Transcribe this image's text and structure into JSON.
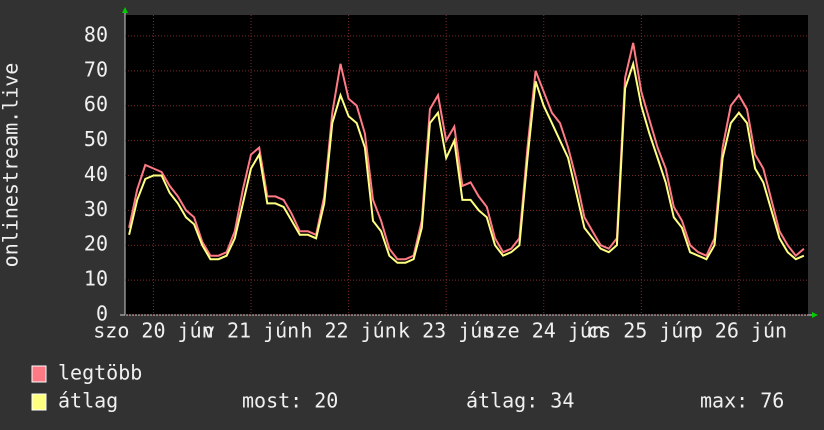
{
  "chart_data": {
    "type": "line",
    "y_axis_label": "onlinestream.live",
    "categories": [
      null,
      null,
      null,
      "szo 20 jún",
      null,
      null,
      null,
      null,
      null,
      null,
      null,
      null,
      null,
      null,
      null,
      "v 21 jún",
      null,
      null,
      null,
      null,
      null,
      null,
      null,
      null,
      null,
      null,
      null,
      "h 22 jún",
      null,
      null,
      null,
      null,
      null,
      null,
      null,
      null,
      null,
      null,
      null,
      "k 23 jún",
      null,
      null,
      null,
      null,
      null,
      null,
      null,
      null,
      null,
      null,
      null,
      "sze 24 jún",
      null,
      null,
      null,
      null,
      null,
      null,
      null,
      null,
      null,
      null,
      null,
      "cs 25 jún",
      null,
      null,
      null,
      null,
      null,
      null,
      null,
      null,
      null,
      null,
      null,
      "p 26 jún",
      null,
      null,
      null,
      null,
      null,
      null,
      null,
      null
    ],
    "series": [
      {
        "name": "legtöbb",
        "color": "#ff7a85",
        "values": [
          25,
          36,
          43,
          42,
          41,
          37,
          34,
          30,
          28,
          21,
          17,
          17,
          18,
          24,
          36,
          46,
          48,
          34,
          34,
          33,
          29,
          24,
          24,
          23,
          34,
          58,
          72,
          62,
          60,
          52,
          33,
          27,
          19,
          16,
          16,
          17,
          27,
          59,
          63,
          50,
          54,
          37,
          38,
          34,
          31,
          22,
          18,
          19,
          22,
          48,
          70,
          64,
          58,
          55,
          48,
          39,
          28,
          24,
          20,
          19,
          22,
          68,
          78,
          64,
          56,
          48,
          42,
          31,
          27,
          20,
          18,
          17,
          22,
          48,
          60,
          63,
          59,
          46,
          42,
          33,
          24,
          20,
          17,
          19
        ]
      },
      {
        "name": "átlag",
        "color": "#ffff80",
        "values": [
          23,
          33,
          39,
          40,
          40,
          35,
          32,
          28,
          26,
          20,
          16,
          16,
          17,
          22,
          32,
          42,
          46,
          32,
          32,
          31,
          27,
          23,
          23,
          22,
          32,
          55,
          63,
          57,
          55,
          48,
          27,
          24,
          17,
          15,
          15,
          16,
          25,
          55,
          58,
          45,
          50,
          33,
          33,
          30,
          28,
          20,
          17,
          18,
          20,
          45,
          67,
          60,
          55,
          50,
          45,
          35,
          25,
          22,
          19,
          18,
          20,
          65,
          72,
          60,
          52,
          45,
          38,
          28,
          25,
          18,
          17,
          16,
          20,
          45,
          55,
          58,
          55,
          42,
          38,
          30,
          22,
          18,
          16,
          17
        ]
      }
    ],
    "ylim": [
      0,
      86
    ],
    "yticks": [
      0,
      10,
      20,
      30,
      40,
      50,
      60,
      70,
      80
    ],
    "grid": true,
    "stats": [
      "most: 20",
      "átlag: 34",
      "max: 76"
    ]
  }
}
